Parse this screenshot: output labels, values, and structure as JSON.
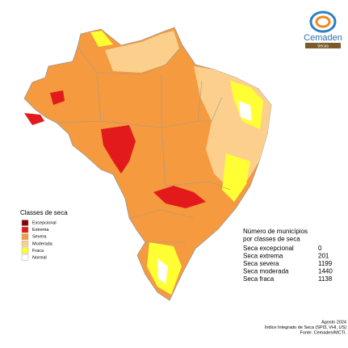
{
  "logo": {
    "name": "Cemaden",
    "tag": "Secas"
  },
  "legend": {
    "title": "Classes de seca",
    "items": [
      {
        "label": "Excepcional",
        "color": "#8b0000"
      },
      {
        "label": "Extrema",
        "color": "#e31a1c"
      },
      {
        "label": "Severa",
        "color": "#f59a3e"
      },
      {
        "label": "Moderada",
        "color": "#fcd08c"
      },
      {
        "label": "Fraca",
        "color": "#ffff33"
      },
      {
        "label": "Normal",
        "color": "#ffffff"
      }
    ]
  },
  "counts": {
    "title_lines": [
      "Número de municípios",
      "por classes de seca"
    ],
    "rows": [
      {
        "label": "Seca excepcional",
        "value": 0
      },
      {
        "label": "Seca extrema",
        "value": 201
      },
      {
        "label": "Seca severa",
        "value": 1199
      },
      {
        "label": "Seca moderada",
        "value": 1440
      },
      {
        "label": "Seca fraca",
        "value": 1138
      }
    ]
  },
  "footer": [
    "Agosto 2024",
    "Índice Integrado de Seca (SPI3, VHI, US)",
    "Fonte: Cemaden/MCTI."
  ]
}
